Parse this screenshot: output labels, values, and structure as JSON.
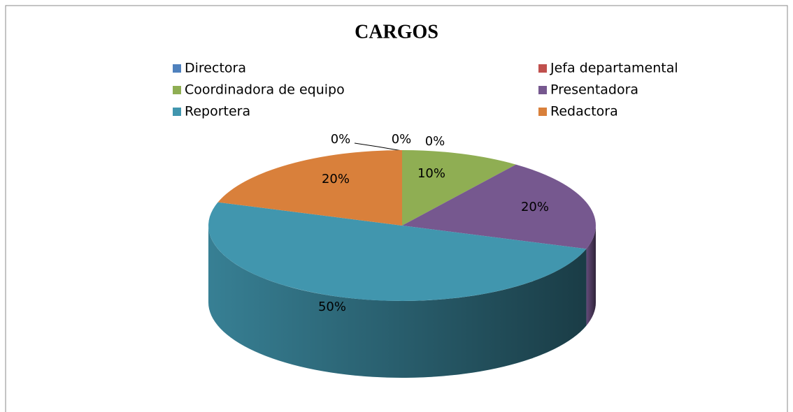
{
  "chart_data": {
    "type": "pie3d",
    "title": "CARGOS",
    "categories": [
      "Directora",
      "Jefa departamental",
      "Coordinadora de equipo",
      "Presentadora",
      "Reportera",
      "Redactora",
      null
    ],
    "values": [
      0,
      0,
      10,
      20,
      50,
      20,
      0
    ],
    "value_labels": [
      "0%",
      "0%",
      "10%",
      "20%",
      "50%",
      "20%",
      "0%"
    ],
    "colors": [
      "#4f81bd",
      "#c0504d",
      "#8fae53",
      "#76588f",
      "#4196ae",
      "#d9803b",
      "#4f81bd"
    ],
    "legend": "top"
  }
}
